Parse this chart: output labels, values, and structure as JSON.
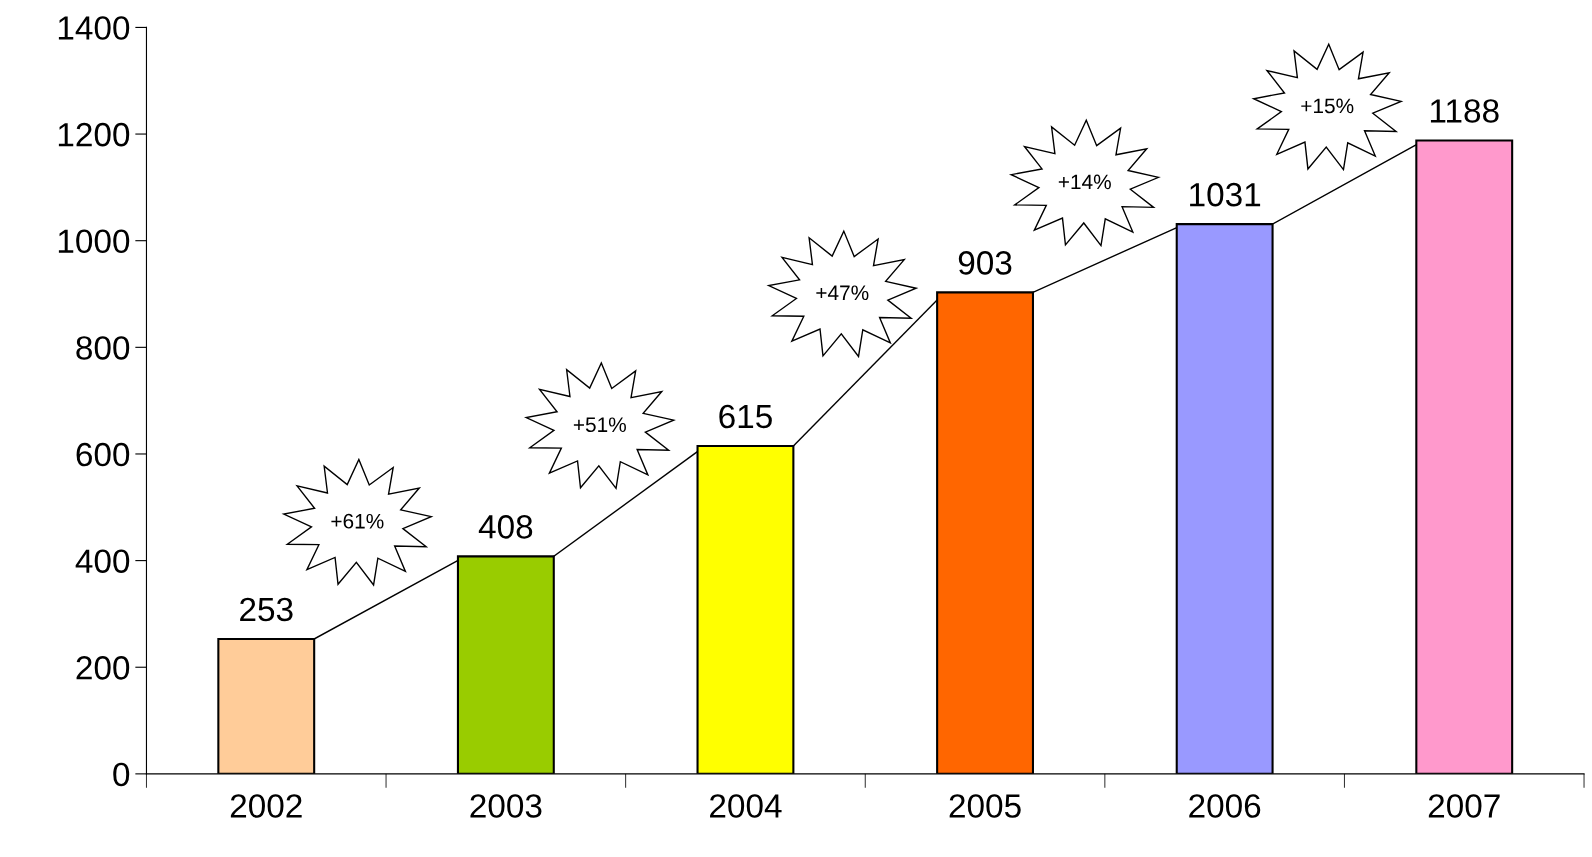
{
  "chart_data": {
    "type": "bar",
    "categories": [
      "2002",
      "2003",
      "2004",
      "2005",
      "2006",
      "2007"
    ],
    "values": [
      253,
      408,
      615,
      903,
      1031,
      1188
    ],
    "colors": [
      "#ffcc99",
      "#99cc00",
      "#ffff00",
      "#ff6600",
      "#9999ff",
      "#ff99cc"
    ],
    "ylim": [
      0,
      1400
    ],
    "yticks": [
      0,
      200,
      400,
      600,
      800,
      1000,
      1200,
      1400
    ],
    "data_labels": true,
    "grid": false,
    "legend": false,
    "annotations": [
      "+61%",
      "+51%",
      "+47%",
      "+14%",
      "+15%"
    ]
  }
}
